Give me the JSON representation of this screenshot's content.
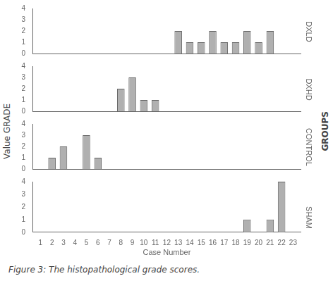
{
  "chart_data": [
    {
      "type": "bar",
      "title": "DXLD",
      "x": [
        1,
        2,
        3,
        4,
        5,
        6,
        7,
        8,
        9,
        10,
        11,
        12,
        13,
        14,
        15,
        16,
        17,
        18,
        19,
        20,
        21,
        22,
        23
      ],
      "values": [
        0,
        0,
        0,
        0,
        0,
        0,
        0,
        0,
        0,
        0,
        0,
        0,
        2,
        1,
        1,
        2,
        1,
        1,
        2,
        1,
        2,
        0,
        0
      ],
      "color": "#b0b0b0",
      "xlim": [
        0.3,
        23.7
      ],
      "xticks": [
        1,
        2,
        3,
        4,
        5,
        6,
        7,
        8,
        9,
        10,
        11,
        12,
        13,
        14,
        15,
        16,
        17,
        18,
        19,
        20,
        21,
        22,
        23
      ],
      "ylim": [
        0,
        4
      ],
      "yticks": [
        0,
        1,
        2,
        3,
        4
      ],
      "grid": false,
      "tick_labels": "y"
    },
    {
      "type": "bar",
      "title": "DXHD",
      "x": [
        1,
        2,
        3,
        4,
        5,
        6,
        7,
        8,
        9,
        10,
        11,
        12,
        13,
        14,
        15,
        16,
        17,
        18,
        19,
        20,
        21,
        22,
        23
      ],
      "values": [
        0,
        0,
        0,
        0,
        0,
        0,
        0,
        2,
        3,
        1,
        1,
        0,
        0,
        0,
        0,
        0,
        0,
        0,
        0,
        0,
        0,
        0,
        0
      ],
      "color": "#b0b0b0",
      "xlim": [
        0.3,
        23.7
      ],
      "xticks": [
        1,
        2,
        3,
        4,
        5,
        6,
        7,
        8,
        9,
        10,
        11,
        12,
        13,
        14,
        15,
        16,
        17,
        18,
        19,
        20,
        21,
        22,
        23
      ],
      "ylim": [
        0,
        4
      ],
      "yticks": [
        0,
        1,
        2,
        3,
        4
      ],
      "grid": false,
      "tick_labels": "y"
    },
    {
      "type": "bar",
      "title": "CONTROL",
      "x": [
        1,
        2,
        3,
        4,
        5,
        6,
        7,
        8,
        9,
        10,
        11,
        12,
        13,
        14,
        15,
        16,
        17,
        18,
        19,
        20,
        21,
        22,
        23
      ],
      "values": [
        0,
        1,
        2,
        0,
        3,
        1,
        0,
        0,
        0,
        0,
        0,
        0,
        0,
        0,
        0,
        0,
        0,
        0,
        0,
        0,
        0,
        0,
        0
      ],
      "color": "#b0b0b0",
      "xlim": [
        0.3,
        23.7
      ],
      "xticks": [
        1,
        2,
        3,
        4,
        5,
        6,
        7,
        8,
        9,
        10,
        11,
        12,
        13,
        14,
        15,
        16,
        17,
        18,
        19,
        20,
        21,
        22,
        23
      ],
      "ylim": [
        0,
        4
      ],
      "yticks": [
        0,
        1,
        2,
        3,
        4
      ],
      "grid": false,
      "tick_labels": "y"
    },
    {
      "type": "bar",
      "title": "SHAM",
      "x": [
        1,
        2,
        3,
        4,
        5,
        6,
        7,
        8,
        9,
        10,
        11,
        12,
        13,
        14,
        15,
        16,
        17,
        18,
        19,
        20,
        21,
        22,
        23
      ],
      "values": [
        0,
        0,
        0,
        0,
        0,
        0,
        0,
        0,
        0,
        0,
        0,
        0,
        0,
        0,
        0,
        0,
        0,
        0,
        1,
        0,
        1,
        4,
        0
      ],
      "color": "#b0b0b0",
      "xlim": [
        0.3,
        23.7
      ],
      "xticks": [
        1,
        2,
        3,
        4,
        5,
        6,
        7,
        8,
        9,
        10,
        11,
        12,
        13,
        14,
        15,
        16,
        17,
        18,
        19,
        20,
        21,
        22,
        23
      ],
      "ylim": [
        0,
        4
      ],
      "yticks": [
        0,
        1,
        2,
        3,
        4
      ],
      "grid": false,
      "xlabel": "Case Number",
      "ylabel": "Value GRADE",
      "annotations": [
        "GROUPS",
        "Figure 3: The histopathological grade scores."
      ]
    }
  ]
}
